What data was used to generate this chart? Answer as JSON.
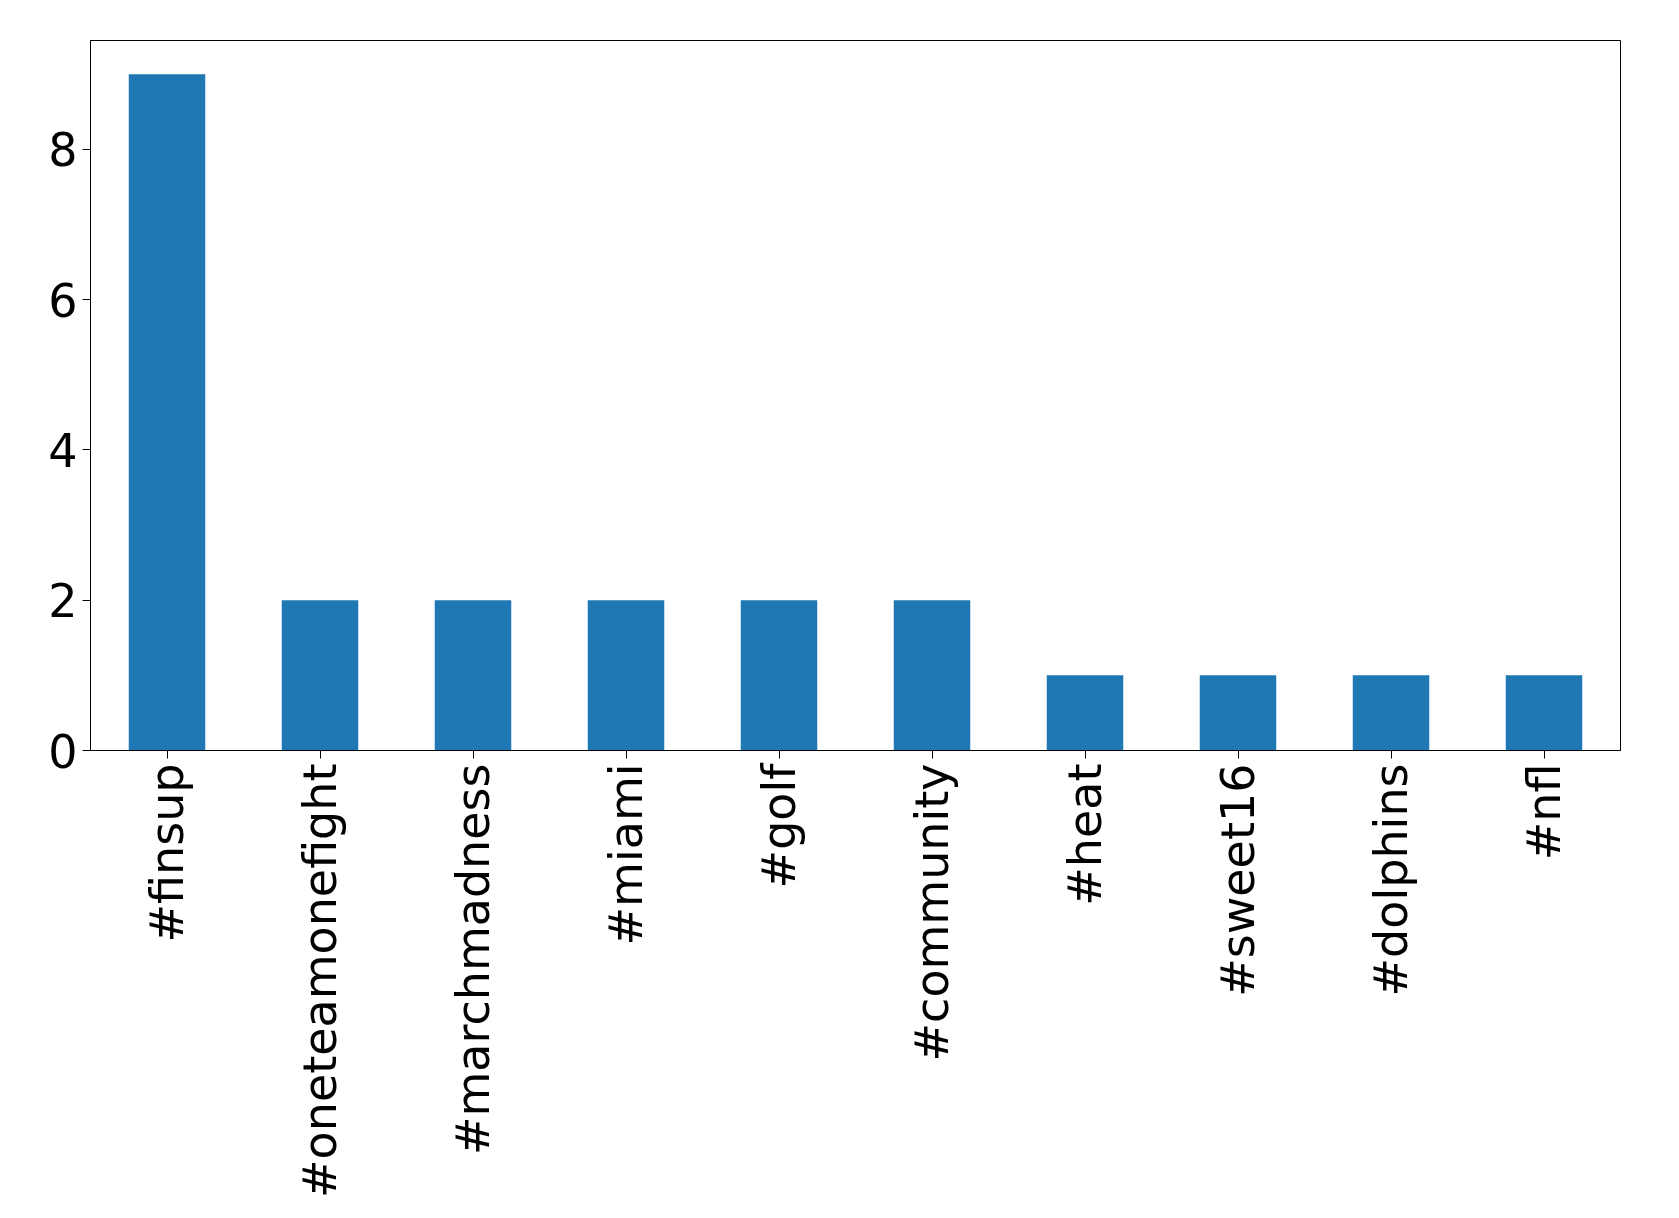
{
  "chart_data": {
    "type": "bar",
    "categories": [
      "#finsup",
      "#oneteamonefight",
      "#marchmadness",
      "#miami",
      "#golf",
      "#community",
      "#heat",
      "#sweet16",
      "#dolphins",
      "#nfl"
    ],
    "values": [
      9,
      2,
      2,
      2,
      2,
      2,
      1,
      1,
      1,
      1
    ],
    "color": "#1f77b4",
    "ylim": [
      0,
      9.45
    ],
    "yticks": [
      0,
      2,
      4,
      6,
      8
    ],
    "grid": false
  }
}
